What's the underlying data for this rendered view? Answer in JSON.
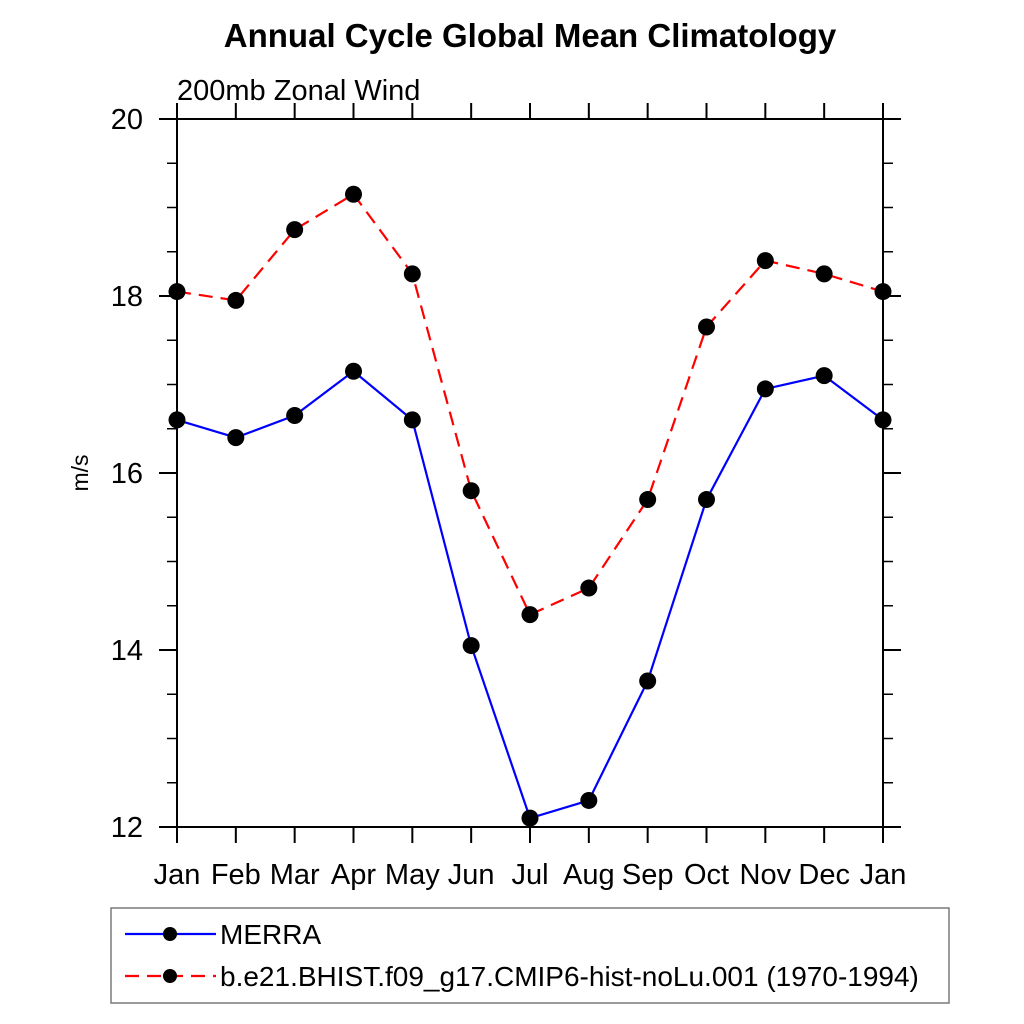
{
  "chart_data": {
    "type": "line",
    "title": "Annual Cycle Global Mean Climatology",
    "subtitle": "200mb Zonal Wind",
    "ylabel": "m/s",
    "xlabel": "",
    "ylim": [
      12,
      20
    ],
    "y_major_ticks": [
      12,
      14,
      16,
      18,
      20
    ],
    "y_minor_step": 0.5,
    "grid": false,
    "legend_position": "bottom-left-box",
    "categories": [
      "Jan",
      "Feb",
      "Mar",
      "Apr",
      "May",
      "Jun",
      "Jul",
      "Aug",
      "Sep",
      "Oct",
      "Nov",
      "Dec",
      "Jan"
    ],
    "series": [
      {
        "name": "MERRA",
        "line_style": "solid",
        "line_color": "#0000ff",
        "marker": "filled-circle",
        "marker_color": "#000000",
        "values": [
          16.6,
          16.4,
          16.65,
          17.15,
          16.6,
          14.05,
          12.1,
          12.3,
          13.65,
          15.7,
          16.95,
          17.1,
          16.6
        ]
      },
      {
        "name": "b.e21.BHIST.f09_g17.CMIP6-hist-noLu.001 (1970-1994)",
        "line_style": "dashed",
        "line_color": "#ff0000",
        "marker": "filled-circle",
        "marker_color": "#000000",
        "values": [
          18.05,
          17.95,
          18.75,
          19.15,
          18.25,
          15.8,
          14.4,
          14.7,
          15.7,
          17.65,
          18.4,
          18.25,
          18.05
        ]
      }
    ],
    "axis_color": "#000000",
    "legend_border_color": "#7a7a7a"
  }
}
